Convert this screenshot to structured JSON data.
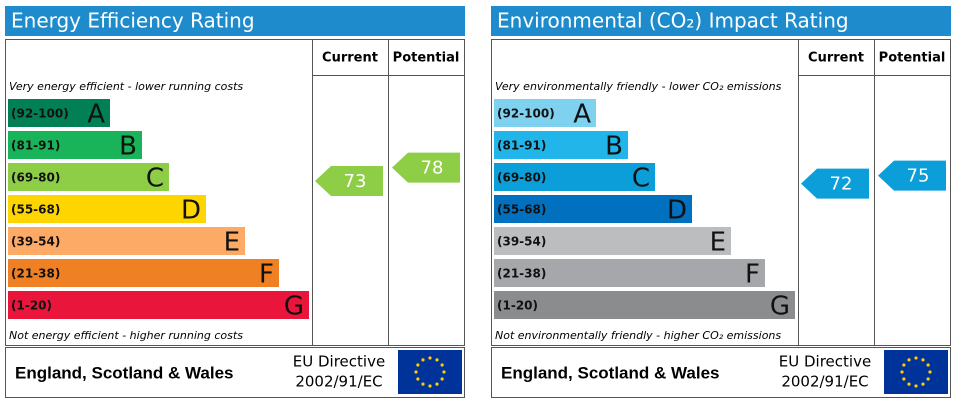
{
  "panels": [
    {
      "title": "Energy Efficiency Rating",
      "headers": [
        "Current",
        "Potential"
      ],
      "top_note": "Very energy efficient - lower running costs",
      "bottom_note": "Not energy efficient - higher running costs",
      "bands": [
        {
          "range": "(92-100)",
          "letter": "A",
          "color": "#008054"
        },
        {
          "range": "(81-91)",
          "letter": "B",
          "color": "#19b459"
        },
        {
          "range": "(69-80)",
          "letter": "C",
          "color": "#8dce46"
        },
        {
          "range": "(55-68)",
          "letter": "D",
          "color": "#ffd500"
        },
        {
          "range": "(39-54)",
          "letter": "E",
          "color": "#fcaa65"
        },
        {
          "range": "(21-38)",
          "letter": "F",
          "color": "#ef8023"
        },
        {
          "range": "(1-20)",
          "letter": "G",
          "color": "#e9153b"
        }
      ],
      "current": 73,
      "potential": 78,
      "region": "England, Scotland & Wales",
      "directive": [
        "EU Directive",
        "2002/91/EC"
      ]
    },
    {
      "title": "Environmental (CO₂) Impact Rating",
      "headers": [
        "Current",
        "Potential"
      ],
      "top_note": "Very environmentally friendly - lower CO₂ emissions",
      "bottom_note": "Not environmentally friendly - higher CO₂ emissions",
      "bands": [
        {
          "range": "(92-100)",
          "letter": "A",
          "color": "#7fd1f0"
        },
        {
          "range": "(81-91)",
          "letter": "B",
          "color": "#22b5ea"
        },
        {
          "range": "(69-80)",
          "letter": "C",
          "color": "#0b9ed9"
        },
        {
          "range": "(55-68)",
          "letter": "D",
          "color": "#0070bf"
        },
        {
          "range": "(39-54)",
          "letter": "E",
          "color": "#bbbdbf"
        },
        {
          "range": "(21-38)",
          "letter": "F",
          "color": "#a5a7aa"
        },
        {
          "range": "(1-20)",
          "letter": "G",
          "color": "#8a8c8e"
        }
      ],
      "current": 72,
      "potential": 75,
      "region": "England, Scotland & Wales",
      "directive": [
        "EU Directive",
        "2002/91/EC"
      ]
    }
  ]
}
